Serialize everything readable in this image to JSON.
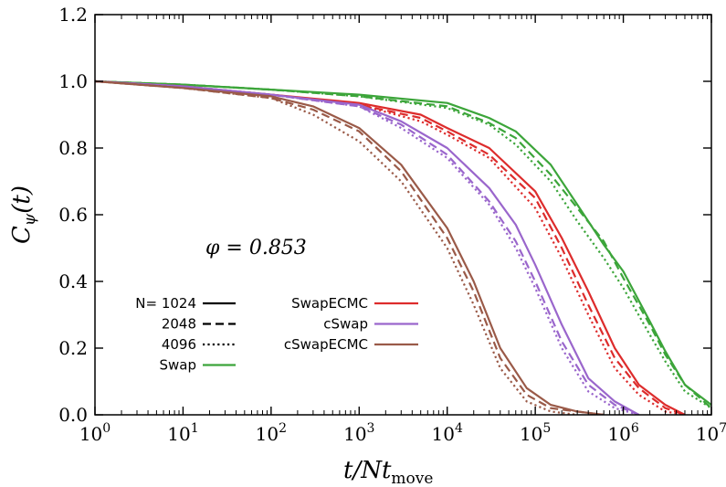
{
  "chart_data": {
    "type": "line",
    "xscale": "log",
    "xlim": [
      1,
      10000000
    ],
    "ylim": [
      0,
      1.2
    ],
    "xlabel": "t/Nt_move",
    "ylabel": "C_ψ(t)",
    "x_tick_exponents": [
      0,
      1,
      2,
      3,
      4,
      5,
      6,
      7
    ],
    "y_ticks": [
      "0.0",
      "0.2",
      "0.4",
      "0.6",
      "0.8",
      "1.0",
      "1.2"
    ],
    "annotation": "φ = 0.853",
    "grid": false,
    "legend_position": "bottom-left",
    "styles": [
      {
        "name": "N= 1024",
        "dash": "solid"
      },
      {
        "name": "2048",
        "dash": "dashed"
      },
      {
        "name": "4096",
        "dash": "dotted"
      }
    ],
    "algorithms": [
      {
        "name": "Swap",
        "color": "#3ca53a"
      },
      {
        "name": "SwapECMC",
        "color": "#dd2c2c"
      },
      {
        "name": "cSwap",
        "color": "#9a66cc"
      },
      {
        "name": "cSwapECMC",
        "color": "#9a5a48"
      }
    ],
    "series": [
      {
        "algorithm": "Swap",
        "N": 1024,
        "dash": "solid",
        "color": "#3ca53a",
        "x": [
          1,
          10,
          100,
          1000,
          10000,
          30000,
          60000,
          150000,
          300000,
          600000,
          1000000,
          2000000,
          3000000,
          5000000,
          10000000
        ],
        "y": [
          1.0,
          0.99,
          0.975,
          0.96,
          0.935,
          0.89,
          0.85,
          0.75,
          0.63,
          0.51,
          0.43,
          0.28,
          0.19,
          0.09,
          0.03
        ]
      },
      {
        "algorithm": "Swap",
        "N": 2048,
        "dash": "dashed",
        "color": "#3ca53a",
        "x": [
          1,
          10,
          100,
          1000,
          10000,
          30000,
          60000,
          150000,
          300000,
          600000,
          1000000,
          2000000,
          3000000,
          5000000,
          10000000
        ],
        "y": [
          1.0,
          0.99,
          0.975,
          0.955,
          0.925,
          0.875,
          0.83,
          0.72,
          0.62,
          0.52,
          0.41,
          0.27,
          0.18,
          0.09,
          0.02
        ]
      },
      {
        "algorithm": "Swap",
        "N": 4096,
        "dash": "dotted",
        "color": "#3ca53a",
        "x": [
          1,
          10,
          100,
          1000,
          10000,
          30000,
          60000,
          150000,
          300000,
          600000,
          1000000,
          2000000,
          3000000,
          5000000,
          10000000
        ],
        "y": [
          1.0,
          0.99,
          0.975,
          0.955,
          0.92,
          0.87,
          0.81,
          0.7,
          0.58,
          0.47,
          0.38,
          0.24,
          0.16,
          0.07,
          0.02
        ]
      },
      {
        "algorithm": "SwapECMC",
        "N": 1024,
        "dash": "solid",
        "color": "#dd2c2c",
        "x": [
          1,
          10,
          100,
          1000,
          5000,
          10000,
          30000,
          100000,
          200000,
          400000,
          800000,
          1500000,
          3000000,
          5000000
        ],
        "y": [
          1.0,
          0.985,
          0.96,
          0.935,
          0.9,
          0.86,
          0.8,
          0.67,
          0.53,
          0.37,
          0.2,
          0.09,
          0.03,
          0.0
        ]
      },
      {
        "algorithm": "SwapECMC",
        "N": 2048,
        "dash": "dashed",
        "color": "#dd2c2c",
        "x": [
          1,
          10,
          100,
          1000,
          5000,
          10000,
          30000,
          100000,
          200000,
          400000,
          800000,
          1500000,
          3000000,
          5000000
        ],
        "y": [
          1.0,
          0.985,
          0.96,
          0.93,
          0.89,
          0.85,
          0.78,
          0.65,
          0.5,
          0.33,
          0.17,
          0.08,
          0.02,
          0.0
        ]
      },
      {
        "algorithm": "SwapECMC",
        "N": 4096,
        "dash": "dotted",
        "color": "#dd2c2c",
        "x": [
          1,
          10,
          100,
          1000,
          5000,
          10000,
          30000,
          100000,
          200000,
          400000,
          800000,
          1500000,
          3000000,
          5000000
        ],
        "y": [
          1.0,
          0.985,
          0.96,
          0.93,
          0.88,
          0.84,
          0.77,
          0.62,
          0.47,
          0.3,
          0.14,
          0.06,
          0.01,
          0.0
        ]
      },
      {
        "algorithm": "cSwap",
        "N": 1024,
        "dash": "solid",
        "color": "#9a66cc",
        "x": [
          1,
          10,
          100,
          1000,
          3000,
          10000,
          30000,
          60000,
          100000,
          200000,
          400000,
          800000,
          1500000
        ],
        "y": [
          1.0,
          0.985,
          0.96,
          0.93,
          0.88,
          0.8,
          0.68,
          0.57,
          0.45,
          0.27,
          0.11,
          0.04,
          0.0
        ]
      },
      {
        "algorithm": "cSwap",
        "N": 2048,
        "dash": "dashed",
        "color": "#9a66cc",
        "x": [
          1,
          10,
          100,
          1000,
          3000,
          10000,
          30000,
          60000,
          100000,
          200000,
          400000,
          800000,
          1500000
        ],
        "y": [
          1.0,
          0.985,
          0.96,
          0.925,
          0.87,
          0.78,
          0.64,
          0.52,
          0.4,
          0.22,
          0.09,
          0.03,
          0.0
        ]
      },
      {
        "algorithm": "cSwap",
        "N": 4096,
        "dash": "dotted",
        "color": "#9a66cc",
        "x": [
          1,
          10,
          100,
          1000,
          3000,
          10000,
          30000,
          60000,
          100000,
          200000,
          400000,
          800000,
          1500000
        ],
        "y": [
          1.0,
          0.985,
          0.96,
          0.925,
          0.86,
          0.77,
          0.63,
          0.5,
          0.38,
          0.2,
          0.07,
          0.02,
          0.0
        ]
      },
      {
        "algorithm": "cSwapECMC",
        "N": 1024,
        "dash": "solid",
        "color": "#9a5a48",
        "x": [
          1,
          10,
          100,
          300,
          1000,
          3000,
          10000,
          20000,
          40000,
          80000,
          150000,
          300000,
          600000
        ],
        "y": [
          1.0,
          0.98,
          0.955,
          0.925,
          0.86,
          0.75,
          0.56,
          0.4,
          0.2,
          0.08,
          0.03,
          0.01,
          0.0
        ]
      },
      {
        "algorithm": "cSwapECMC",
        "N": 2048,
        "dash": "dashed",
        "color": "#9a5a48",
        "x": [
          1,
          10,
          100,
          300,
          1000,
          3000,
          10000,
          20000,
          40000,
          80000,
          150000,
          300000,
          600000
        ],
        "y": [
          1.0,
          0.98,
          0.95,
          0.915,
          0.85,
          0.73,
          0.53,
          0.37,
          0.17,
          0.06,
          0.02,
          0.01,
          0.0
        ]
      },
      {
        "algorithm": "cSwapECMC",
        "N": 4096,
        "dash": "dotted",
        "color": "#9a5a48",
        "x": [
          1,
          10,
          100,
          300,
          1000,
          3000,
          10000,
          20000,
          40000,
          80000,
          150000,
          300000
        ],
        "y": [
          1.0,
          0.98,
          0.95,
          0.9,
          0.82,
          0.7,
          0.5,
          0.33,
          0.14,
          0.04,
          0.01,
          0.0
        ]
      }
    ]
  }
}
